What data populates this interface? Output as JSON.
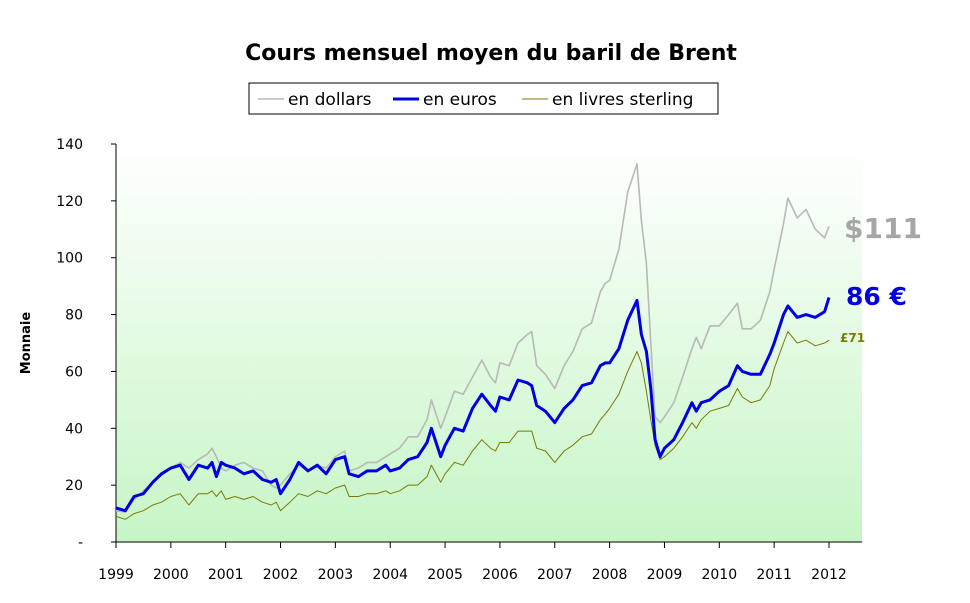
{
  "chart_data": {
    "type": "line",
    "title": "Cours mensuel moyen du baril de Brent",
    "ylabel": "Monnaie",
    "xlabel": "",
    "ylim": [
      0,
      140
    ],
    "yticks": [
      {
        "v": 0,
        "label": "-"
      },
      {
        "v": 20,
        "label": "20"
      },
      {
        "v": 40,
        "label": "40"
      },
      {
        "v": 60,
        "label": "60"
      },
      {
        "v": 80,
        "label": "80"
      },
      {
        "v": 100,
        "label": "100"
      },
      {
        "v": 120,
        "label": "120"
      },
      {
        "v": 140,
        "label": "140"
      }
    ],
    "xlim": [
      1999,
      2012.6
    ],
    "xticks": [
      "1999",
      "2000",
      "2001",
      "2002",
      "2003",
      "2004",
      "2005",
      "2006",
      "2007",
      "2008",
      "2009",
      "2010",
      "2011",
      "2012"
    ],
    "grid": false,
    "legend_position": "top-center",
    "series": [
      {
        "name": "en dollars",
        "color": "#b8b8b8",
        "end_label": "$111",
        "end_label_color": "#a6a6a6",
        "points": [
          [
            1999.0,
            11
          ],
          [
            1999.17,
            10.5
          ],
          [
            1999.33,
            15
          ],
          [
            1999.5,
            18
          ],
          [
            1999.67,
            21
          ],
          [
            1999.83,
            23.5
          ],
          [
            2000.0,
            26
          ],
          [
            2000.17,
            28
          ],
          [
            2000.33,
            26
          ],
          [
            2000.5,
            29
          ],
          [
            2000.67,
            31
          ],
          [
            2000.75,
            33
          ],
          [
            2000.83,
            30
          ],
          [
            2000.92,
            26
          ],
          [
            2001.0,
            25
          ],
          [
            2001.17,
            27
          ],
          [
            2001.33,
            28
          ],
          [
            2001.5,
            26
          ],
          [
            2001.67,
            25
          ],
          [
            2001.83,
            20
          ],
          [
            2001.92,
            19
          ],
          [
            2002.0,
            20
          ],
          [
            2002.17,
            24
          ],
          [
            2002.33,
            27
          ],
          [
            2002.5,
            25
          ],
          [
            2002.67,
            27
          ],
          [
            2002.83,
            26
          ],
          [
            2003.0,
            30
          ],
          [
            2003.17,
            32
          ],
          [
            2003.25,
            25
          ],
          [
            2003.42,
            26
          ],
          [
            2003.58,
            28
          ],
          [
            2003.75,
            28
          ],
          [
            2003.92,
            30
          ],
          [
            2004.0,
            31
          ],
          [
            2004.17,
            33
          ],
          [
            2004.33,
            37
          ],
          [
            2004.5,
            37
          ],
          [
            2004.67,
            43
          ],
          [
            2004.75,
            50
          ],
          [
            2004.92,
            40
          ],
          [
            2005.0,
            44
          ],
          [
            2005.17,
            53
          ],
          [
            2005.33,
            52
          ],
          [
            2005.5,
            58
          ],
          [
            2005.67,
            64
          ],
          [
            2005.83,
            58
          ],
          [
            2005.92,
            56
          ],
          [
            2006.0,
            63
          ],
          [
            2006.17,
            62
          ],
          [
            2006.33,
            70
          ],
          [
            2006.5,
            73
          ],
          [
            2006.58,
            74
          ],
          [
            2006.67,
            62
          ],
          [
            2006.83,
            59
          ],
          [
            2007.0,
            54
          ],
          [
            2007.17,
            62
          ],
          [
            2007.33,
            67
          ],
          [
            2007.5,
            75
          ],
          [
            2007.67,
            77
          ],
          [
            2007.83,
            88
          ],
          [
            2007.92,
            91
          ],
          [
            2008.0,
            92
          ],
          [
            2008.17,
            103
          ],
          [
            2008.33,
            123
          ],
          [
            2008.5,
            133
          ],
          [
            2008.58,
            113
          ],
          [
            2008.67,
            98
          ],
          [
            2008.75,
            70
          ],
          [
            2008.83,
            44
          ],
          [
            2008.92,
            42
          ],
          [
            2009.0,
            44
          ],
          [
            2009.17,
            49
          ],
          [
            2009.33,
            58
          ],
          [
            2009.5,
            68
          ],
          [
            2009.58,
            72
          ],
          [
            2009.67,
            68
          ],
          [
            2009.83,
            76
          ],
          [
            2010.0,
            76
          ],
          [
            2010.17,
            80
          ],
          [
            2010.33,
            84
          ],
          [
            2010.42,
            75
          ],
          [
            2010.58,
            75
          ],
          [
            2010.75,
            78
          ],
          [
            2010.92,
            88
          ],
          [
            2011.0,
            96
          ],
          [
            2011.17,
            112
          ],
          [
            2011.25,
            121
          ],
          [
            2011.42,
            114
          ],
          [
            2011.58,
            117
          ],
          [
            2011.75,
            110
          ],
          [
            2011.92,
            107
          ],
          [
            2012.0,
            111
          ]
        ]
      },
      {
        "name": "en euros",
        "color": "#0000e0",
        "end_label": "86 €",
        "end_label_color": "#0000e0",
        "points": [
          [
            1999.0,
            12
          ],
          [
            1999.17,
            11
          ],
          [
            1999.33,
            16
          ],
          [
            1999.5,
            17
          ],
          [
            1999.67,
            21
          ],
          [
            1999.83,
            24
          ],
          [
            2000.0,
            26
          ],
          [
            2000.17,
            27
          ],
          [
            2000.33,
            22
          ],
          [
            2000.5,
            27
          ],
          [
            2000.67,
            26
          ],
          [
            2000.75,
            28
          ],
          [
            2000.83,
            23
          ],
          [
            2000.92,
            28
          ],
          [
            2001.0,
            27
          ],
          [
            2001.17,
            26
          ],
          [
            2001.33,
            24
          ],
          [
            2001.5,
            25
          ],
          [
            2001.67,
            22
          ],
          [
            2001.83,
            21
          ],
          [
            2001.92,
            22
          ],
          [
            2002.0,
            17
          ],
          [
            2002.17,
            22
          ],
          [
            2002.33,
            28
          ],
          [
            2002.5,
            25
          ],
          [
            2002.67,
            27
          ],
          [
            2002.83,
            24
          ],
          [
            2003.0,
            29
          ],
          [
            2003.17,
            30
          ],
          [
            2003.25,
            24
          ],
          [
            2003.42,
            23
          ],
          [
            2003.58,
            25
          ],
          [
            2003.75,
            25
          ],
          [
            2003.92,
            27
          ],
          [
            2004.0,
            25
          ],
          [
            2004.17,
            26
          ],
          [
            2004.33,
            29
          ],
          [
            2004.5,
            30
          ],
          [
            2004.67,
            35
          ],
          [
            2004.75,
            40
          ],
          [
            2004.92,
            30
          ],
          [
            2005.0,
            34
          ],
          [
            2005.17,
            40
          ],
          [
            2005.33,
            39
          ],
          [
            2005.5,
            47
          ],
          [
            2005.67,
            52
          ],
          [
            2005.83,
            48
          ],
          [
            2005.92,
            46
          ],
          [
            2006.0,
            51
          ],
          [
            2006.17,
            50
          ],
          [
            2006.33,
            57
          ],
          [
            2006.5,
            56
          ],
          [
            2006.58,
            55
          ],
          [
            2006.67,
            48
          ],
          [
            2006.83,
            46
          ],
          [
            2007.0,
            42
          ],
          [
            2007.17,
            47
          ],
          [
            2007.33,
            50
          ],
          [
            2007.5,
            55
          ],
          [
            2007.67,
            56
          ],
          [
            2007.83,
            62
          ],
          [
            2007.92,
            63
          ],
          [
            2008.0,
            63
          ],
          [
            2008.17,
            68
          ],
          [
            2008.33,
            78
          ],
          [
            2008.5,
            85
          ],
          [
            2008.58,
            73
          ],
          [
            2008.67,
            67
          ],
          [
            2008.75,
            54
          ],
          [
            2008.83,
            36
          ],
          [
            2008.92,
            30
          ],
          [
            2009.0,
            33
          ],
          [
            2009.17,
            36
          ],
          [
            2009.33,
            42
          ],
          [
            2009.5,
            49
          ],
          [
            2009.58,
            46
          ],
          [
            2009.67,
            49
          ],
          [
            2009.83,
            50
          ],
          [
            2010.0,
            53
          ],
          [
            2010.17,
            55
          ],
          [
            2010.33,
            62
          ],
          [
            2010.42,
            60
          ],
          [
            2010.58,
            59
          ],
          [
            2010.75,
            59
          ],
          [
            2010.92,
            66
          ],
          [
            2011.0,
            70
          ],
          [
            2011.17,
            80
          ],
          [
            2011.25,
            83
          ],
          [
            2011.42,
            79
          ],
          [
            2011.58,
            80
          ],
          [
            2011.75,
            79
          ],
          [
            2011.92,
            81
          ],
          [
            2012.0,
            86
          ]
        ]
      },
      {
        "name": "en livres sterling",
        "color": "#7a7a00",
        "end_label": "£71",
        "end_label_color": "#7a7a00",
        "points": [
          [
            1999.0,
            9
          ],
          [
            1999.17,
            8
          ],
          [
            1999.33,
            10
          ],
          [
            1999.5,
            11
          ],
          [
            1999.67,
            13
          ],
          [
            1999.83,
            14
          ],
          [
            2000.0,
            16
          ],
          [
            2000.17,
            17
          ],
          [
            2000.33,
            13
          ],
          [
            2000.5,
            17
          ],
          [
            2000.67,
            17
          ],
          [
            2000.75,
            18
          ],
          [
            2000.83,
            16
          ],
          [
            2000.92,
            18
          ],
          [
            2001.0,
            15
          ],
          [
            2001.17,
            16
          ],
          [
            2001.33,
            15
          ],
          [
            2001.5,
            16
          ],
          [
            2001.67,
            14
          ],
          [
            2001.83,
            13
          ],
          [
            2001.92,
            14
          ],
          [
            2002.0,
            11
          ],
          [
            2002.17,
            14
          ],
          [
            2002.33,
            17
          ],
          [
            2002.5,
            16
          ],
          [
            2002.67,
            18
          ],
          [
            2002.83,
            17
          ],
          [
            2003.0,
            19
          ],
          [
            2003.17,
            20
          ],
          [
            2003.25,
            16
          ],
          [
            2003.42,
            16
          ],
          [
            2003.58,
            17
          ],
          [
            2003.75,
            17
          ],
          [
            2003.92,
            18
          ],
          [
            2004.0,
            17
          ],
          [
            2004.17,
            18
          ],
          [
            2004.33,
            20
          ],
          [
            2004.5,
            20
          ],
          [
            2004.67,
            23
          ],
          [
            2004.75,
            27
          ],
          [
            2004.92,
            21
          ],
          [
            2005.0,
            24
          ],
          [
            2005.17,
            28
          ],
          [
            2005.33,
            27
          ],
          [
            2005.5,
            32
          ],
          [
            2005.67,
            36
          ],
          [
            2005.83,
            33
          ],
          [
            2005.92,
            32
          ],
          [
            2006.0,
            35
          ],
          [
            2006.17,
            35
          ],
          [
            2006.33,
            39
          ],
          [
            2006.5,
            39
          ],
          [
            2006.58,
            39
          ],
          [
            2006.67,
            33
          ],
          [
            2006.83,
            32
          ],
          [
            2007.0,
            28
          ],
          [
            2007.17,
            32
          ],
          [
            2007.33,
            34
          ],
          [
            2007.5,
            37
          ],
          [
            2007.67,
            38
          ],
          [
            2007.83,
            43
          ],
          [
            2007.92,
            45
          ],
          [
            2008.0,
            47
          ],
          [
            2008.17,
            52
          ],
          [
            2008.33,
            60
          ],
          [
            2008.5,
            67
          ],
          [
            2008.58,
            63
          ],
          [
            2008.67,
            53
          ],
          [
            2008.75,
            43
          ],
          [
            2008.83,
            34
          ],
          [
            2008.92,
            29
          ],
          [
            2009.0,
            30
          ],
          [
            2009.17,
            33
          ],
          [
            2009.33,
            37
          ],
          [
            2009.5,
            42
          ],
          [
            2009.58,
            40
          ],
          [
            2009.67,
            43
          ],
          [
            2009.83,
            46
          ],
          [
            2010.0,
            47
          ],
          [
            2010.17,
            48
          ],
          [
            2010.33,
            54
          ],
          [
            2010.42,
            51
          ],
          [
            2010.58,
            49
          ],
          [
            2010.75,
            50
          ],
          [
            2010.92,
            55
          ],
          [
            2011.0,
            61
          ],
          [
            2011.17,
            70
          ],
          [
            2011.25,
            74
          ],
          [
            2011.42,
            70
          ],
          [
            2011.58,
            71
          ],
          [
            2011.75,
            69
          ],
          [
            2011.92,
            70
          ],
          [
            2012.0,
            71
          ]
        ]
      }
    ]
  }
}
